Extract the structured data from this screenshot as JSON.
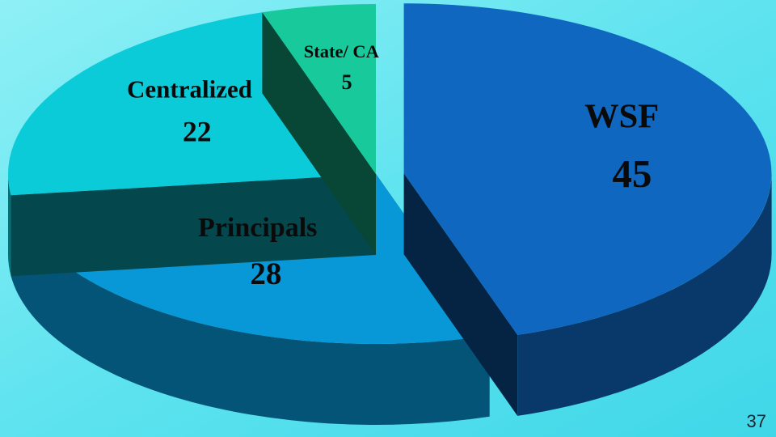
{
  "chart_data": {
    "type": "pie3d",
    "categories": [
      "WSF",
      "Principals",
      "Centralized",
      "State/ CA"
    ],
    "values": [
      45,
      28,
      22,
      5
    ],
    "colors": [
      "#0f67c0",
      "#0898d8",
      "#0ccbd8",
      "#17c99b"
    ],
    "exploded": [
      true,
      false,
      false,
      false
    ]
  },
  "slide_number": 37
}
